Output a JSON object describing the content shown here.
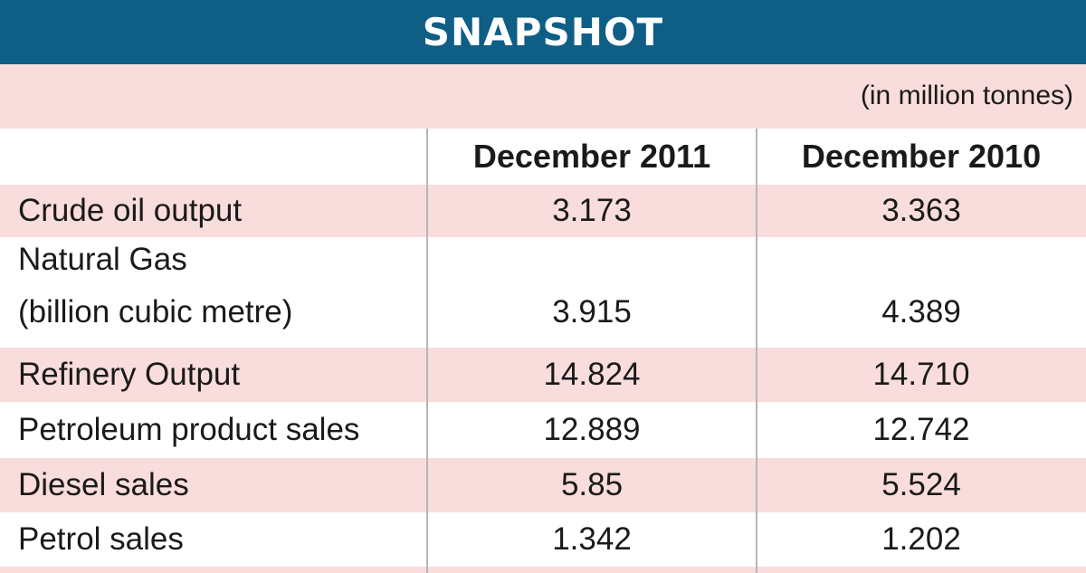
{
  "title": "SNAPSHOT",
  "unit_note": "(in million tonnes)",
  "colors": {
    "title_bar": "#0e5e86",
    "stripe": "#f9dcdc",
    "divider": "#b7b7b7"
  },
  "chart_data": {
    "type": "table",
    "title": "SNAPSHOT",
    "unit": "(in million tonnes)",
    "columns": [
      "December 2011",
      "December 2010"
    ],
    "rows": [
      {
        "label": "Crude oil output",
        "values": [
          "3.173",
          "3.363"
        ]
      },
      {
        "label_line1": "Natural Gas",
        "label_line2": "(billion cubic metre)",
        "values": [
          "3.915",
          "4.389"
        ]
      },
      {
        "label": "Refinery Output",
        "values": [
          "14.824",
          "14.710"
        ]
      },
      {
        "label": "Petroleum product sales",
        "values": [
          "12.889",
          "12.742"
        ]
      },
      {
        "label": "Diesel sales",
        "values": [
          "5.85",
          "5.524"
        ]
      },
      {
        "label": "Petrol sales",
        "values": [
          "1.342",
          "1.202"
        ]
      }
    ]
  }
}
